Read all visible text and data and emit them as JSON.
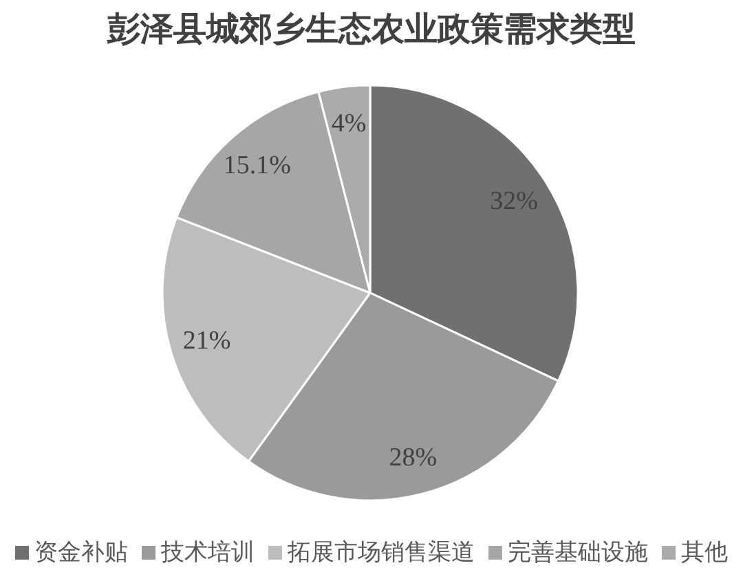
{
  "chart_data": {
    "type": "pie",
    "title": "彭泽县城郊乡生态农业政策需求类型",
    "categories": [
      "资金补贴",
      "技术培训",
      "拓展市场销售渠道",
      "完善基础设施",
      "其他"
    ],
    "values": [
      32,
      28,
      21,
      15.1,
      4
    ],
    "colors": [
      "#707070",
      "#9a9a9a",
      "#bdbdbd",
      "#a6a6a6",
      "#ababab"
    ],
    "value_labels": [
      "32%",
      "28%",
      "21%",
      "15.1%",
      "4%"
    ],
    "legend": "bottom"
  }
}
